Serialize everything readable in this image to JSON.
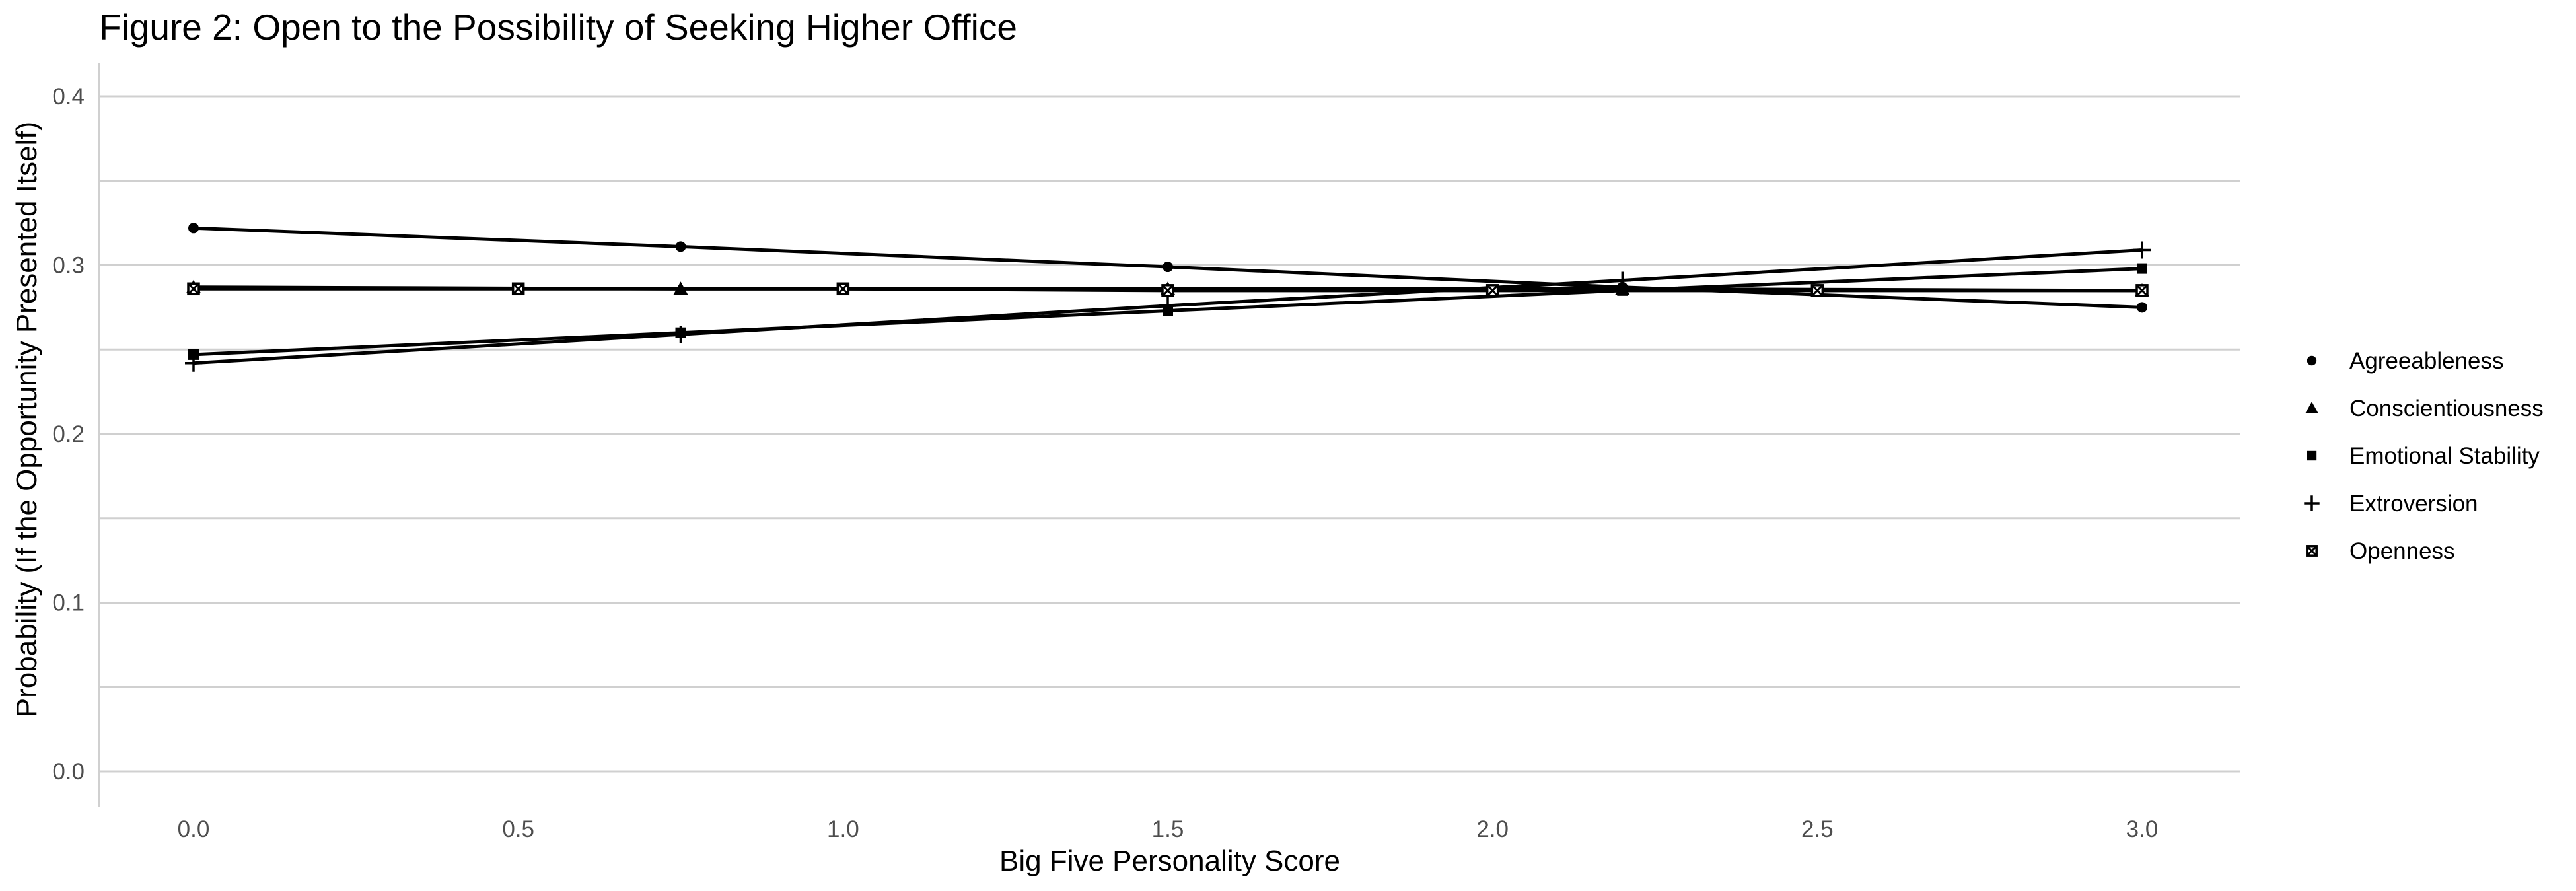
{
  "chart_data": {
    "type": "line",
    "title": "Figure 2: Open to the Possibility of Seeking Higher Office",
    "xlabel": "Big Five Personality Score",
    "ylabel": "Probability (If the Opportunity Presented Itself)",
    "xlim": [
      -0.15,
      3.15
    ],
    "ylim": [
      -0.02,
      0.42
    ],
    "x_ticks": [
      0.0,
      0.5,
      1.0,
      1.5,
      2.0,
      2.5,
      3.0
    ],
    "x_tick_labels": [
      "0.0",
      "0.5",
      "1.0",
      "1.5",
      "2.0",
      "2.5",
      "3.0"
    ],
    "y_ticks": [
      0.0,
      0.1,
      0.2,
      0.3,
      0.4
    ],
    "y_tick_labels": [
      "0.0",
      "0.1",
      "0.2",
      "0.3",
      "0.4"
    ],
    "grid": true,
    "legend_position": "right",
    "series": [
      {
        "name": "Agreeableness",
        "marker": "circle",
        "x": [
          0,
          0.75,
          1.5,
          2.2,
          3.0
        ],
        "y": [
          0.322,
          0.311,
          0.299,
          0.287,
          0.275
        ]
      },
      {
        "name": "Conscientiousness",
        "marker": "triangle",
        "x": [
          0,
          0.75,
          1.5,
          2.2,
          3.0
        ],
        "y": [
          0.287,
          0.286,
          0.286,
          0.286,
          0.285
        ]
      },
      {
        "name": "Emotional Stability",
        "marker": "square",
        "x": [
          0,
          0.75,
          1.5,
          2.2,
          3.0
        ],
        "y": [
          0.247,
          0.26,
          0.273,
          0.285,
          0.298
        ]
      },
      {
        "name": "Extroversion",
        "marker": "plus",
        "x": [
          0,
          0.75,
          1.5,
          2.2,
          3.0
        ],
        "y": [
          0.242,
          0.259,
          0.276,
          0.291,
          0.309
        ]
      },
      {
        "name": "Openness",
        "marker": "boxcross",
        "x": [
          0,
          0.5,
          1.0,
          1.5,
          2.0,
          2.5,
          3.0
        ],
        "y": [
          0.286,
          0.286,
          0.286,
          0.285,
          0.285,
          0.285,
          0.285
        ]
      }
    ]
  }
}
